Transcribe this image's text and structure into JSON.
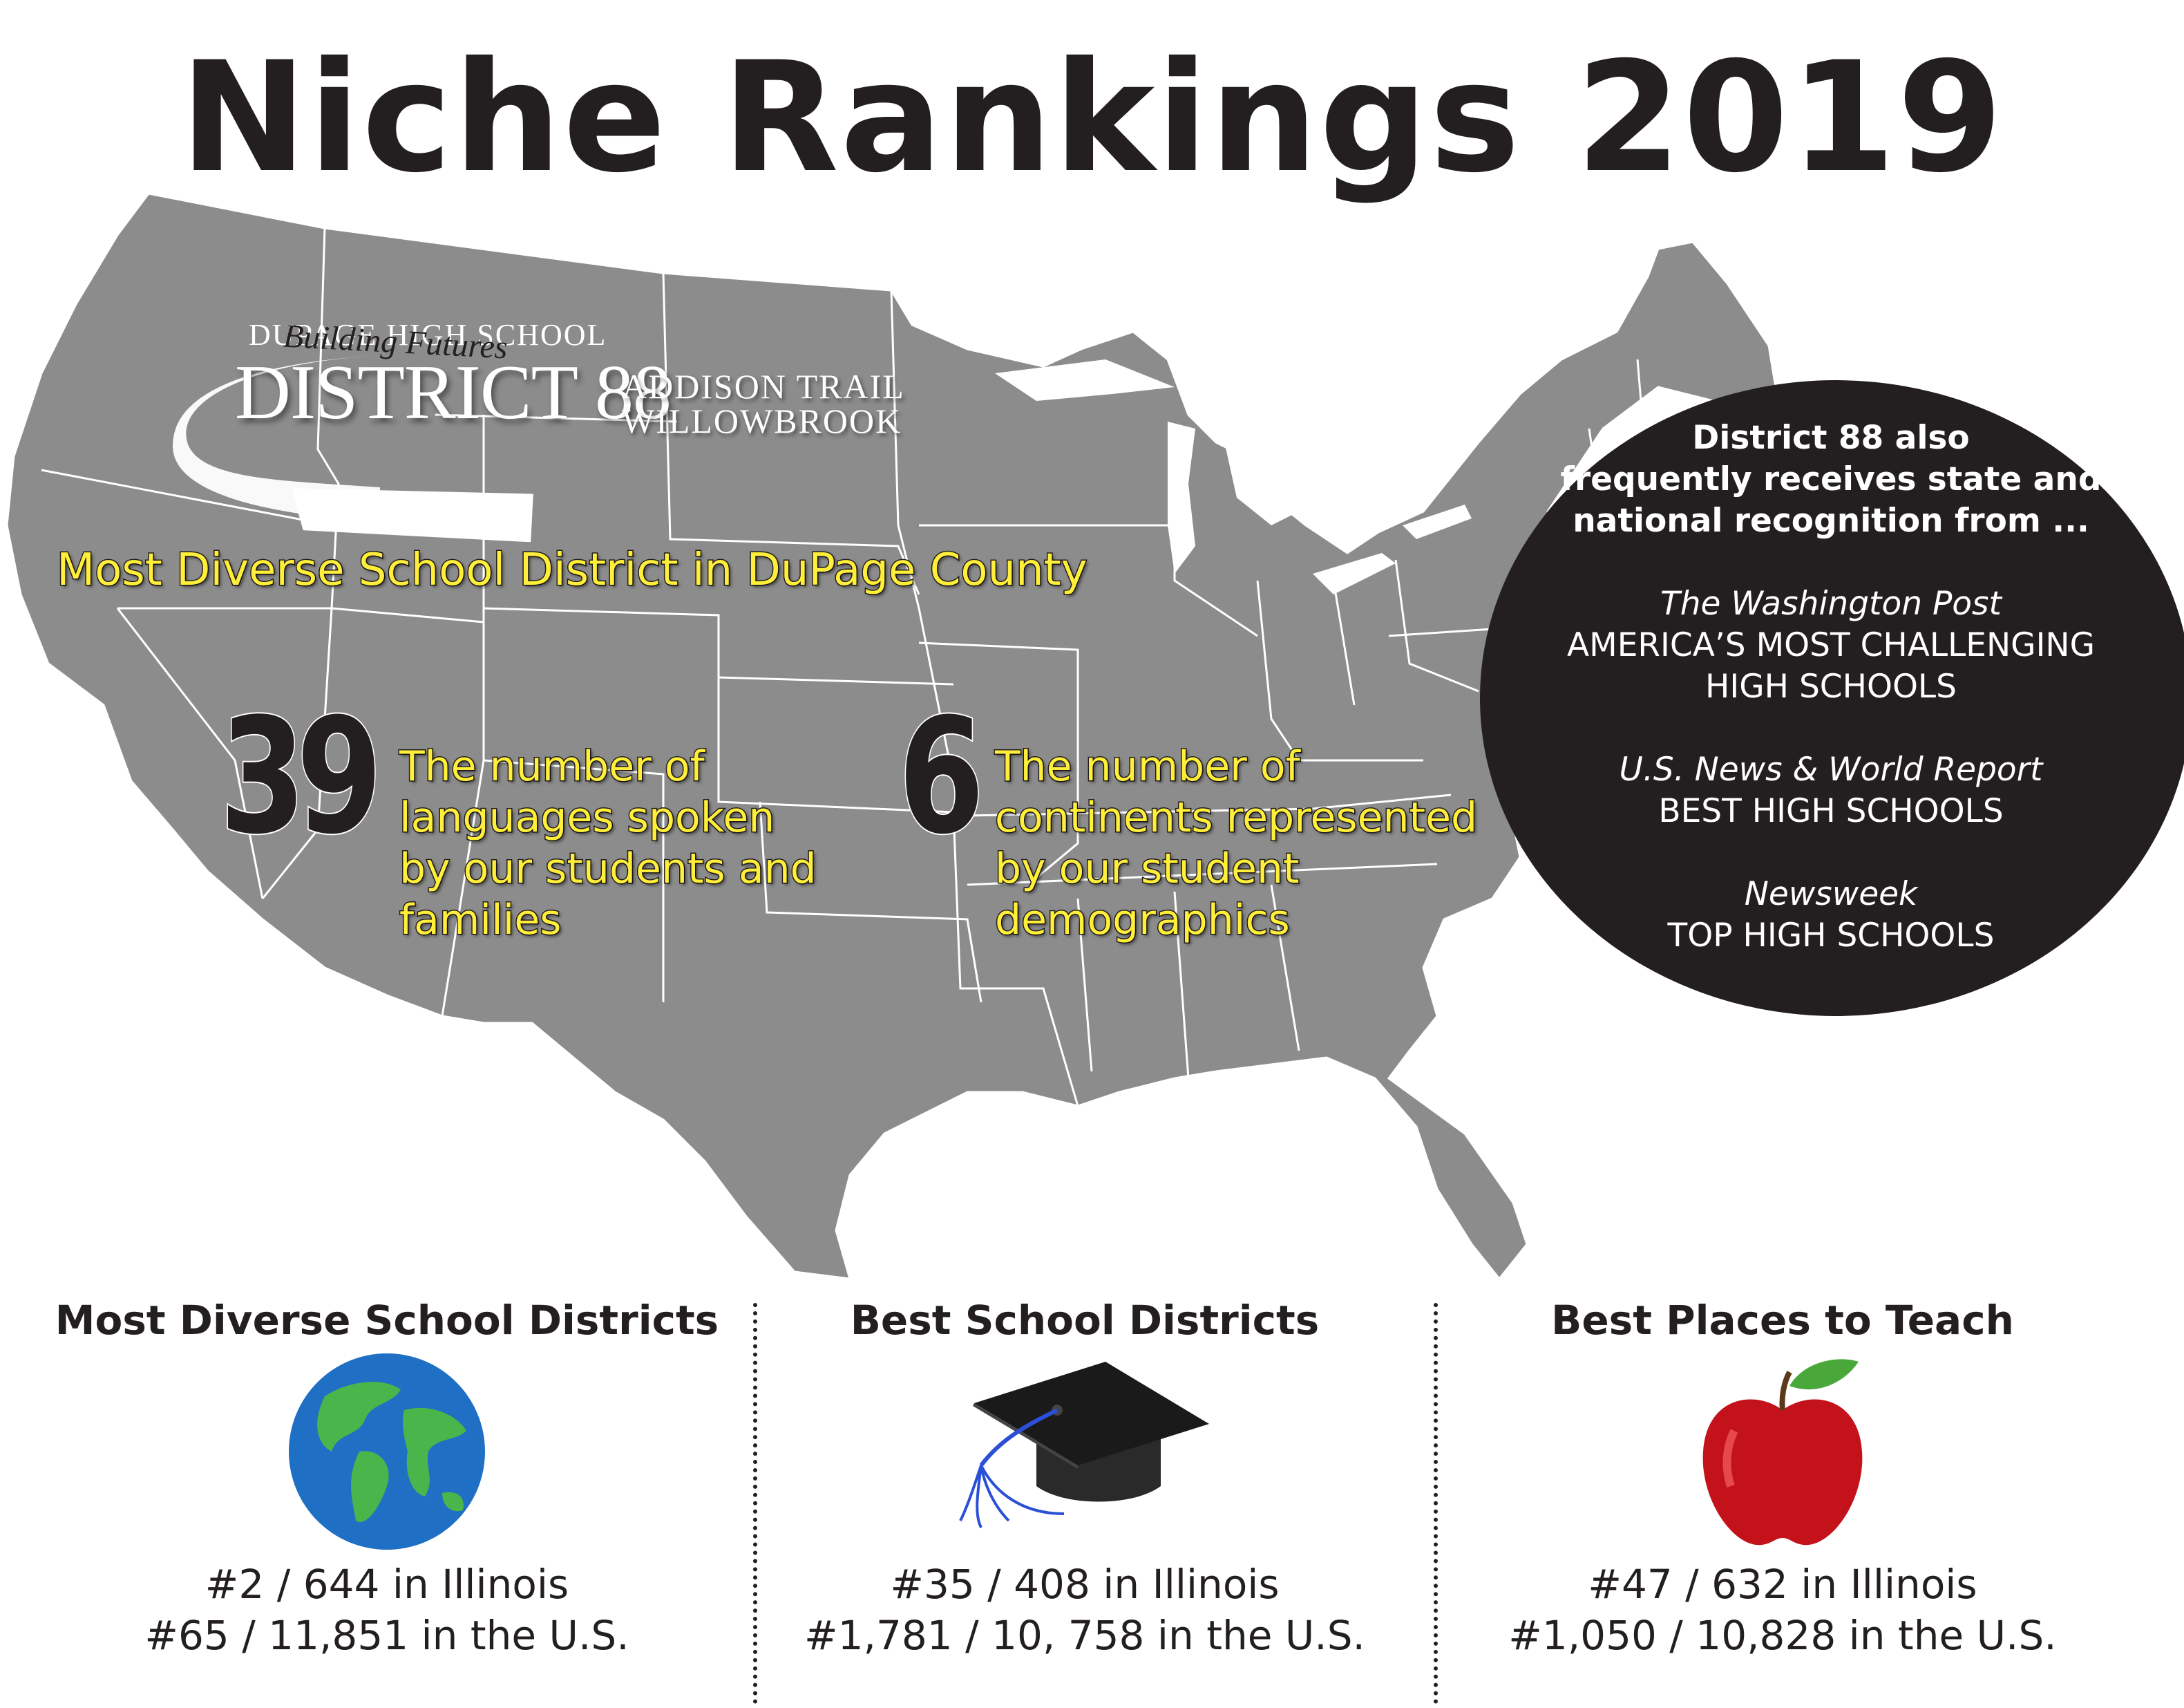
{
  "title": "Niche Rankings 2019",
  "logo": {
    "top_line": "DUPAGE HIGH SCHOOL",
    "main": "DISTRICT 88",
    "school_1": "ADDISON TRAIL",
    "school_2": "WILLOWBROOK",
    "tagline": "Building Futures"
  },
  "headline": "Most Diverse School District in DuPage County",
  "stats": [
    {
      "number": "39",
      "lines": [
        "The number of",
        "languages spoken",
        "by our students and",
        "families"
      ]
    },
    {
      "number": "6",
      "lines": [
        "The number of",
        "continents represented",
        "by our student",
        "demographics"
      ]
    }
  ],
  "recognition": {
    "intro_lines": [
      "District 88 also",
      "frequently receives state and",
      "national recognition from ..."
    ],
    "items": [
      {
        "source": "The Washington Post",
        "award_lines": [
          "AMERICA’S MOST CHALLENGING",
          "HIGH SCHOOLS"
        ]
      },
      {
        "source": "U.S. News & World Report",
        "award_lines": [
          "BEST HIGH SCHOOLS"
        ]
      },
      {
        "source": "Newsweek",
        "award_lines": [
          "TOP HIGH SCHOOLS"
        ]
      }
    ]
  },
  "rankings": [
    {
      "title": "Most Diverse School Districts",
      "icon": "globe-icon",
      "state_rank": "#2 / 644 in Illinois",
      "us_rank": "#65 / 11,851 in the U.S."
    },
    {
      "title": "Best School Districts",
      "icon": "graduation-cap-icon",
      "state_rank": "#35 / 408 in Illinois",
      "us_rank": "#1,781 / 10, 758 in the U.S."
    },
    {
      "title": "Best Places to Teach",
      "icon": "apple-icon",
      "state_rank": "#47 / 632 in Illinois",
      "us_rank": "#1,050 / 10,828 in the U.S."
    }
  ],
  "colors": {
    "map_fill": "#8c8c8c",
    "map_border": "#ffffff",
    "highlight_text": "#ffef3a",
    "dark": "#231f20"
  }
}
